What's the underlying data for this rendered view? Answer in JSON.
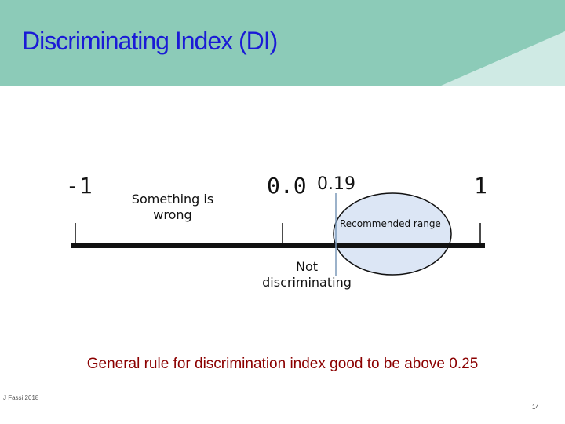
{
  "slide": {
    "title": "Discriminating Index (DI)",
    "author": "J Fassi 2018",
    "page_number": "14"
  },
  "scale": {
    "min_label": "-1",
    "zero_label": "0.0",
    "value_label": "0.19",
    "max_label": "1",
    "wrong_region_label": "Something is wrong",
    "recommended_label": "Recommended range",
    "not_discriminating_label": "Not discriminating"
  },
  "rule": {
    "text": "General rule for discrimination index good to be above 0.25"
  },
  "colors": {
    "title": "#1a1ad6",
    "rule_text": "#8b0000",
    "header_teal": "#8ccbb8",
    "header_light": "#bfe3dc",
    "ellipse_fill": "#dce6f5",
    "marker_line": "#7a98b8"
  }
}
